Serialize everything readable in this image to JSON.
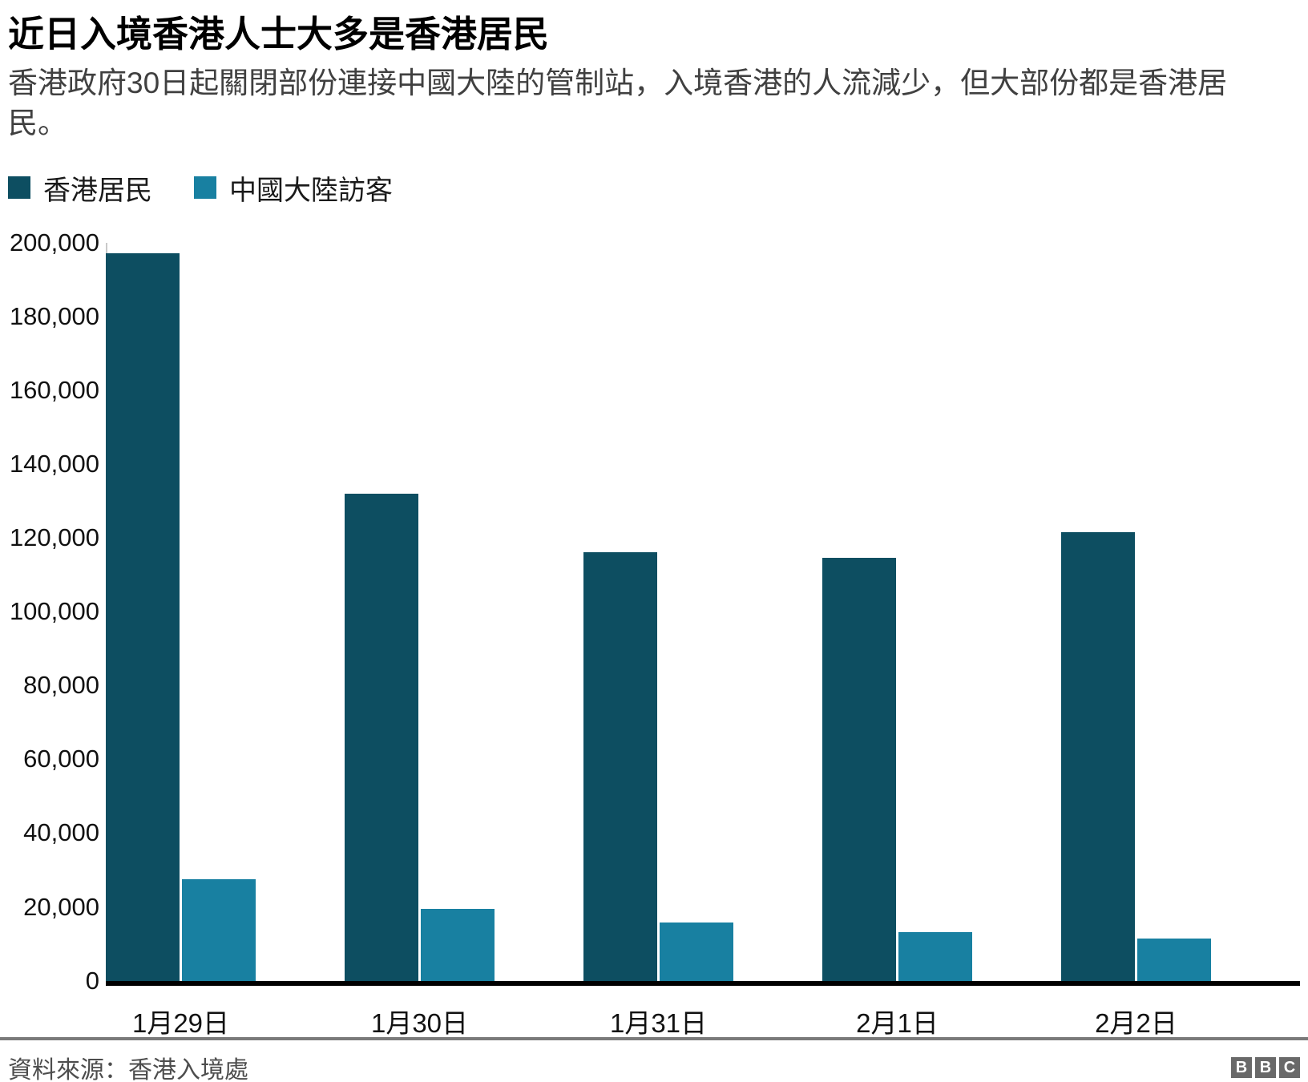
{
  "title": "近日入境香港人士大多是香港居民",
  "subtitle": "香港政府30日起關閉部份連接中國大陸的管制站，入境香港的人流減少，但大部份都是香港居民。",
  "legend": [
    {
      "label": "香港居民",
      "color": "#0d4e61"
    },
    {
      "label": "中國大陸訪客",
      "color": "#1880a1"
    }
  ],
  "chart_data": {
    "type": "bar",
    "categories": [
      "1月29日",
      "1月30日",
      "1月31日",
      "2月1日",
      "2月2日"
    ],
    "series": [
      {
        "name": "香港居民",
        "key": "hk-residents",
        "color": "#0d4e61",
        "values": [
          197000,
          132000,
          116000,
          114500,
          121500
        ]
      },
      {
        "name": "中國大陸訪客",
        "key": "mainland-visitors",
        "color": "#1880a1",
        "values": [
          27500,
          19500,
          15800,
          13200,
          11500
        ]
      }
    ],
    "ylabel": "",
    "xlabel": "",
    "ylim": [
      0,
      200000
    ],
    "ytick_step": 20000,
    "grid": false,
    "legend_position": "top-left",
    "axis_color": "#000000",
    "bar_colors": [
      "#0d4e61",
      "#1880a1"
    ]
  },
  "footer": {
    "source": "資料來源：香港入境處",
    "logo_letters": [
      "B",
      "B",
      "C"
    ]
  }
}
